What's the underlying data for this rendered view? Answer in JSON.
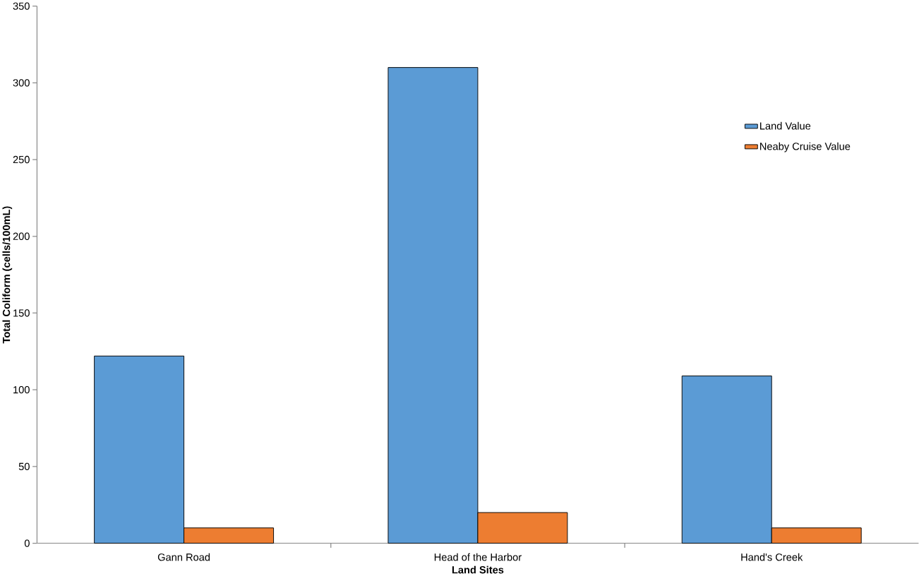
{
  "chart_data": {
    "type": "bar",
    "xlabel": "Land Sites",
    "ylabel": "Total Coliform (cells/100mL)",
    "categories": [
      "Gann Road",
      "Head of the Harbor",
      "Hand's Creek"
    ],
    "series": [
      {
        "name": "Land Value",
        "color": "#5b9bd5",
        "values": [
          122,
          310,
          109
        ]
      },
      {
        "name": "Neaby Cruise Value",
        "color": "#ed7d31",
        "values": [
          10,
          20,
          10
        ]
      }
    ],
    "ylim": [
      0,
      350
    ],
    "yticks": [
      0,
      50,
      100,
      150,
      200,
      250,
      300,
      350
    ],
    "legend": "top right"
  }
}
